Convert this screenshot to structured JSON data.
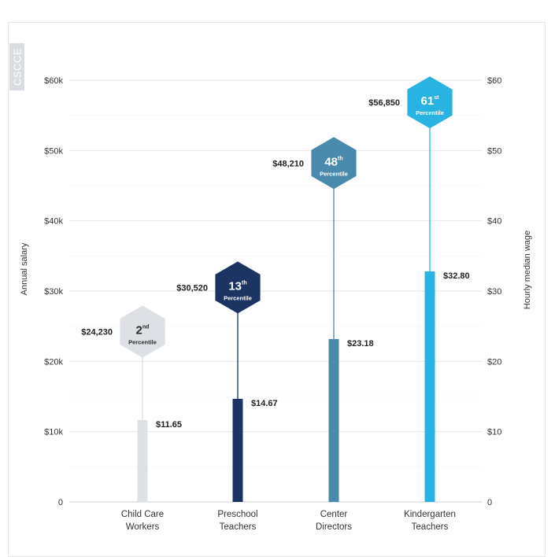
{
  "logo_text": "CSCCE",
  "chart_data": {
    "type": "bar",
    "categories": [
      "Child Care Workers",
      "Preschool Teachers",
      "Center Directors",
      "Kindergarten Teachers"
    ],
    "category_lines": [
      [
        "Child Care",
        "Workers"
      ],
      [
        "Preschool",
        "Teachers"
      ],
      [
        "Center",
        "Directors"
      ],
      [
        "Kindergarten",
        "Teachers"
      ]
    ],
    "left_axis": {
      "label": "Annual salary",
      "ylim": [
        0,
        60000
      ],
      "ticks": [
        0,
        10000,
        20000,
        30000,
        40000,
        50000,
        60000
      ],
      "tick_labels": [
        "0",
        "$10k",
        "$20k",
        "$30k",
        "$40k",
        "$50k",
        "$60k"
      ]
    },
    "right_axis": {
      "label": "Hourly median wage",
      "ylim": [
        0,
        60
      ],
      "ticks": [
        0,
        10,
        20,
        30,
        40,
        50,
        60
      ],
      "tick_labels": [
        "0",
        "$10",
        "$20",
        "$30",
        "$40",
        "$50",
        "$60"
      ]
    },
    "series": [
      {
        "axis": "right",
        "values": [
          11.65,
          14.67,
          23.18,
          32.8
        ],
        "value_labels": [
          "$11.65",
          "$14.67",
          "$23.18",
          "$32.80"
        ]
      },
      {
        "axis": "left",
        "values": [
          24230,
          30520,
          48210,
          56850
        ],
        "value_labels": [
          "$24,230",
          "$30,520",
          "$48,210",
          "$56,850"
        ],
        "percentile_numbers": [
          "2",
          "13",
          "48",
          "61"
        ],
        "percentile_suffixes": [
          "nd",
          "th",
          "th",
          "st"
        ],
        "percentile_word": "Percentile"
      }
    ],
    "colors": [
      "#dde1e6",
      "#1c3461",
      "#4a8aad",
      "#29b3e3"
    ],
    "percentile_text_colors": [
      "#2a2a2a",
      "#ffffff",
      "#ffffff",
      "#ffffff"
    ],
    "grid": true,
    "legend": "none"
  }
}
